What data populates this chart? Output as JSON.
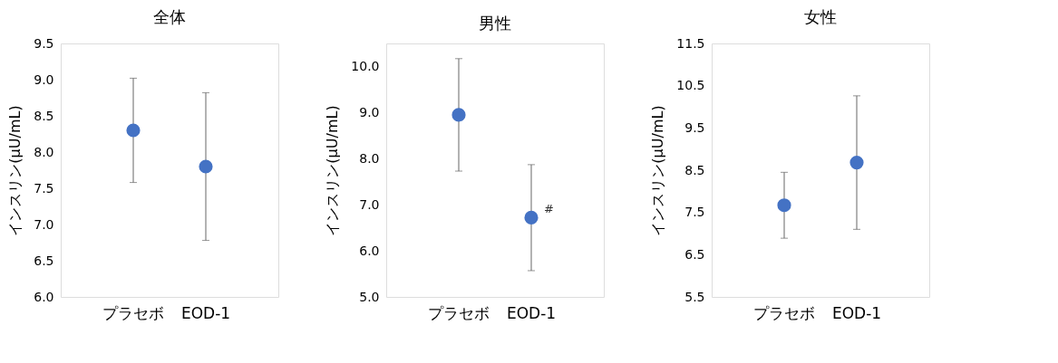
{
  "chart_data": [
    {
      "type": "scatter",
      "title": "全体",
      "ylabel": "インスリン(μU/mL)",
      "categories": [
        "プラセボ",
        "EOD-1"
      ],
      "values": [
        8.3,
        7.8
      ],
      "errors": [
        0.72,
        1.02
      ],
      "color": "#4472c4",
      "marker": "circle",
      "grid": false,
      "ylim": [
        6.0,
        9.5
      ],
      "yticks": [
        {
          "value": 6,
          "label": "6.0"
        },
        {
          "value": 6.5,
          "label": "6.5"
        },
        {
          "value": 7,
          "label": "7.0"
        },
        {
          "value": 7.5,
          "label": "7.5"
        },
        {
          "value": 8,
          "label": "8.0"
        },
        {
          "value": 8.5,
          "label": "8.5"
        },
        {
          "value": 9,
          "label": "9.0"
        },
        {
          "value": 9.5,
          "label": "9.5"
        }
      ]
    },
    {
      "type": "scatter",
      "title": "男性",
      "ylabel": "インスリン(μU/mL)",
      "categories": [
        "プラセボ",
        "EOD-1"
      ],
      "values": [
        8.95,
        6.72
      ],
      "errors": [
        1.22,
        1.15
      ],
      "color": "#4472c4",
      "marker": "circle",
      "grid": false,
      "ylim": [
        5.0,
        10.5
      ],
      "yticks": [
        {
          "value": 5,
          "label": "5.0"
        },
        {
          "value": 6,
          "label": "6.0"
        },
        {
          "value": 7,
          "label": "7.0"
        },
        {
          "value": 8,
          "label": "8.0"
        },
        {
          "value": 9,
          "label": "9.0"
        },
        {
          "value": 10,
          "label": "10.0"
        }
      ],
      "annotations": [
        {
          "text": "#",
          "x": "EOD-1",
          "y": 6.9
        }
      ]
    },
    {
      "type": "scatter",
      "title": "女性",
      "ylabel": "インスリン(μU/mL)",
      "categories": [
        "プラセボ",
        "EOD-1"
      ],
      "values": [
        7.67,
        8.68
      ],
      "errors": [
        0.78,
        1.58
      ],
      "color": "#4472c4",
      "marker": "circle",
      "grid": false,
      "ylim": [
        5.5,
        11.5
      ],
      "yticks": [
        5.5,
        6.5,
        7.5,
        8.5,
        9.5,
        10.5,
        11.5
      ]
    }
  ]
}
